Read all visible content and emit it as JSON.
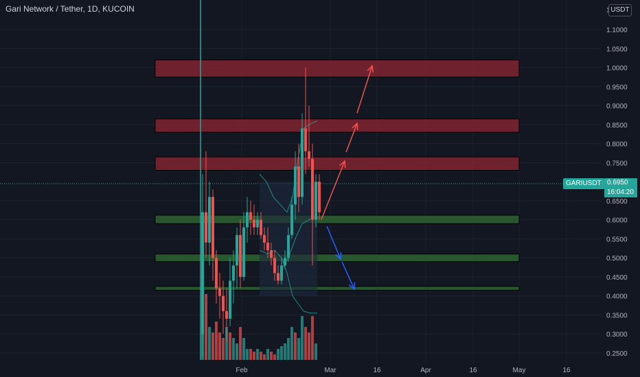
{
  "header": {
    "symbol_title": "Gari Network / Tether, 1D, KUCOIN",
    "currency": "USDT"
  },
  "price_scale": {
    "ticks": [
      "1.1000",
      "1.0500",
      "1.0000",
      "0.9500",
      "0.9000",
      "0.8500",
      "0.8000",
      "0.7500",
      "0.6500",
      "0.6000",
      "0.5500",
      "0.5000",
      "0.4500",
      "0.4000",
      "0.3500",
      "0.3000",
      "0.2500"
    ],
    "top_tick": "1"
  },
  "time_scale": {
    "labels": [
      "Feb",
      "Mar",
      "16",
      "Apr",
      "16",
      "May",
      "16"
    ]
  },
  "price_tag": {
    "symbol": "GARIUSDT",
    "price": "0.6950",
    "countdown": "16:04:20"
  },
  "colors": {
    "background": "#131722",
    "up": "#26a69a",
    "down": "#ef5350",
    "resistance": "#7a2430",
    "support": "#2a5a30",
    "arrow_up": "#ef5350",
    "arrow_down": "#2962ff"
  },
  "chart_data": {
    "type": "candlestick",
    "title": "Gari Network / Tether, 1D, KUCOIN",
    "ylim": [
      0.23,
      1.15
    ],
    "resistance_zones": [
      [
        0.975,
        1.02
      ],
      [
        0.83,
        0.865
      ],
      [
        0.73,
        0.765
      ]
    ],
    "support_zones": [
      [
        0.59,
        0.612
      ],
      [
        0.49,
        0.51
      ],
      [
        0.415,
        0.425
      ]
    ],
    "last_price": 0.695
  }
}
